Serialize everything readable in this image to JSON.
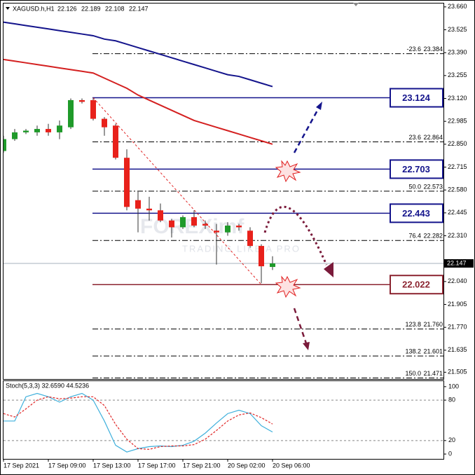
{
  "chart_data": [
    {
      "type": "candlestick",
      "title": "XAGUSD.h,H1",
      "quote": [
        22.126,
        22.189,
        22.108,
        22.147
      ],
      "watermark": [
        "FOREXimf",
        "TRADING LIKE A PRO"
      ],
      "categories": [
        "17 Sep 2021",
        null,
        null,
        null,
        "17 Sep 09:00",
        null,
        null,
        null,
        "17 Sep 13:00",
        null,
        null,
        null,
        "17 Sep 17:00",
        null,
        null,
        null,
        "17 Sep 21:00",
        null,
        null,
        null,
        "20 Sep 02:00",
        null,
        null,
        null,
        "20 Sep 06:00"
      ],
      "open": [
        22.81,
        22.88,
        22.92,
        22.92,
        22.94,
        22.92,
        22.95,
        23.11,
        23.11,
        23.0,
        22.96,
        22.77,
        22.52,
        22.47,
        22.46,
        22.4,
        22.36,
        22.42,
        22.38,
        22.34,
        22.33,
        22.37,
        22.34,
        22.25,
        22.126
      ],
      "high": [
        22.9,
        22.94,
        22.94,
        22.96,
        22.97,
        22.99,
        23.12,
        23.12,
        23.12,
        23.01,
        22.97,
        22.82,
        22.57,
        22.54,
        22.5,
        22.41,
        22.43,
        22.46,
        22.4,
        22.38,
        22.39,
        22.38,
        22.36,
        22.26,
        22.189
      ],
      "low": [
        22.8,
        22.87,
        22.91,
        22.9,
        22.9,
        22.88,
        22.94,
        23.09,
        22.99,
        22.9,
        22.76,
        22.46,
        22.33,
        22.4,
        22.39,
        22.3,
        22.35,
        22.36,
        22.35,
        22.14,
        22.31,
        22.34,
        22.24,
        22.03,
        22.108
      ],
      "close": [
        22.88,
        22.92,
        22.93,
        22.94,
        22.92,
        22.96,
        23.11,
        23.1,
        23.0,
        22.95,
        22.77,
        22.48,
        22.47,
        22.46,
        22.4,
        22.36,
        22.42,
        22.37,
        22.37,
        22.33,
        22.37,
        22.36,
        22.25,
        22.13,
        22.147
      ],
      "up_color": "#1f9a2a",
      "down_color": "#e8211b",
      "moving_averages": [
        {
          "color": "#14148c",
          "values": [
            23.57,
            23.56,
            23.55,
            23.54,
            23.53,
            23.52,
            23.51,
            23.5,
            23.49,
            23.47,
            23.46,
            23.44,
            23.42,
            23.4,
            23.38,
            23.36,
            23.34,
            23.32,
            23.3,
            23.28,
            23.26,
            23.25,
            23.23,
            23.21,
            23.19
          ]
        },
        {
          "color": "#d42020",
          "values": [
            23.35,
            23.34,
            23.33,
            23.32,
            23.31,
            23.3,
            23.29,
            23.28,
            23.27,
            23.24,
            23.21,
            23.18,
            23.14,
            23.11,
            23.08,
            23.05,
            23.02,
            22.99,
            22.97,
            22.95,
            22.93,
            22.91,
            22.89,
            22.87,
            22.85
          ]
        }
      ],
      "levels": [
        {
          "value": 23.124,
          "color": "#14148c"
        },
        {
          "value": 22.703,
          "color": "#14148c"
        },
        {
          "value": 22.443,
          "color": "#14148c"
        },
        {
          "value": 22.022,
          "color": "#8b2430"
        }
      ],
      "fibonacci": [
        {
          "ratio": "-23.6",
          "value": 23.384
        },
        {
          "ratio": "23.6",
          "value": 22.864
        },
        {
          "ratio": "50.0",
          "value": 22.573
        },
        {
          "ratio": "76.4",
          "value": 22.282
        },
        {
          "ratio": "123.8",
          "value": {
            "value": 21.76,
            "label": "21.760"
          }
        },
        {
          "ratio": "138.2",
          "value": 21.601
        },
        {
          "ratio": "150.0",
          "value": 21.471
        }
      ],
      "current_price": 22.147,
      "ylim": [
        21.465,
        23.68
      ],
      "yticks": [
        {
          "value": 23.66,
          "label": "23.660"
        },
        23.525,
        {
          "value": 23.39,
          "label": "23.390"
        },
        23.255,
        {
          "value": 23.12,
          "label": "23.120"
        },
        22.985,
        {
          "value": 22.85,
          "label": "22.850"
        },
        22.715,
        {
          "value": 22.58,
          "label": "22.580"
        },
        22.445,
        {
          "value": 22.31,
          "label": "22.310"
        },
        {
          "value": 22.04,
          "label": "22.040"
        },
        21.905,
        {
          "value": 21.77,
          "label": "21.770"
        },
        21.635,
        21.505
      ]
    },
    {
      "type": "line",
      "title": "Stoch(5,3,3) 32.6590 44.5236",
      "series": [
        {
          "color": "#3fb0dc",
          "values": [
            49,
            49,
            85,
            90,
            85,
            77,
            85,
            90,
            80,
            49,
            13,
            3,
            8,
            11,
            12,
            11,
            13,
            19,
            31,
            46,
            60,
            65,
            60,
            42,
            32.659
          ]
        },
        {
          "color": "#e02525",
          "values": [
            60,
            55,
            67,
            80,
            85,
            82,
            83,
            85,
            85,
            72,
            44,
            22,
            8,
            7,
            11,
            12,
            12,
            14,
            22,
            35,
            49,
            58,
            61,
            54,
            44.5236
          ]
        }
      ],
      "levels": [
        20,
        80
      ],
      "ylim": [
        -7.2,
        108.2
      ],
      "yticks": [
        0,
        20,
        80,
        100
      ]
    }
  ]
}
